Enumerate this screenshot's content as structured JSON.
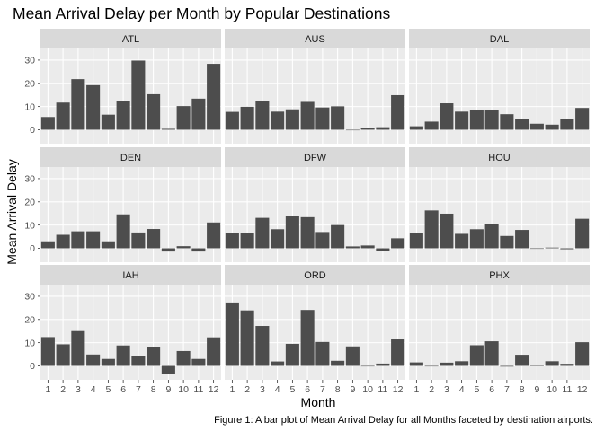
{
  "chart_data": {
    "type": "bar",
    "title": "Mean Arrival Delay per Month by Popular Destinations",
    "xlabel": "Month",
    "ylabel": "Mean Arrival Delay",
    "caption": "Figure 1: A bar plot of Mean Arrival Delay for all Months faceted by destination airports.",
    "facet_layout": "3x3 grid",
    "ylim": [
      -6,
      35
    ],
    "yticks": [
      0,
      10,
      20,
      30
    ],
    "categories": [
      "1",
      "2",
      "3",
      "4",
      "5",
      "6",
      "7",
      "8",
      "9",
      "10",
      "11",
      "12"
    ],
    "grid": true,
    "bar_color": "#4d4d4d",
    "panel_background": "#ebebeb",
    "strip_background": "#d9d9d9",
    "facets": [
      {
        "name": "ATL",
        "values": [
          5.5,
          11.7,
          21.8,
          19.2,
          6.5,
          12.3,
          29.8,
          15.3,
          0.4,
          10.2,
          13.4,
          28.4
        ]
      },
      {
        "name": "AUS",
        "values": [
          7.7,
          9.9,
          12.4,
          7.8,
          8.8,
          12.0,
          9.6,
          10.1,
          0.0,
          0.8,
          1.1,
          14.9
        ]
      },
      {
        "name": "DAL",
        "values": [
          1.5,
          3.5,
          11.4,
          7.8,
          8.4,
          8.4,
          6.7,
          4.8,
          2.6,
          2.2,
          4.5,
          9.4
        ]
      },
      {
        "name": "DEN",
        "values": [
          3.0,
          5.8,
          7.3,
          7.3,
          3.0,
          14.6,
          6.8,
          8.3,
          -1.4,
          0.9,
          -1.4,
          11.1
        ]
      },
      {
        "name": "DFW",
        "values": [
          6.5,
          6.5,
          13.1,
          8.2,
          14.0,
          13.4,
          7.0,
          10.0,
          0.8,
          1.2,
          -1.3,
          4.3
        ]
      },
      {
        "name": "HOU",
        "values": [
          6.6,
          16.3,
          14.9,
          6.2,
          8.2,
          10.3,
          5.3,
          7.9,
          0.0,
          0.3,
          -0.4,
          12.7
        ]
      },
      {
        "name": "IAH",
        "values": [
          12.4,
          9.3,
          15.0,
          4.9,
          3.0,
          8.8,
          4.2,
          8.1,
          -3.5,
          6.4,
          3.0,
          12.3
        ]
      },
      {
        "name": "ORD",
        "values": [
          27.3,
          23.9,
          17.2,
          1.9,
          9.5,
          24.1,
          10.3,
          2.2,
          8.4,
          0.0,
          1.0,
          11.4
        ]
      },
      {
        "name": "PHX",
        "values": [
          1.5,
          -0.2,
          1.4,
          2.0,
          8.9,
          10.6,
          -0.3,
          4.8,
          0.4,
          2.0,
          0.9,
          10.2
        ]
      }
    ]
  }
}
